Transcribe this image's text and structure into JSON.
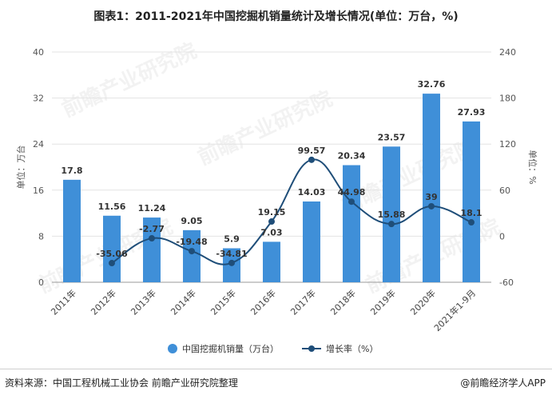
{
  "title": "图表1：2011-2021年中国挖掘机销量统计及增长情况(单位：万台，%)",
  "source": "资料来源：中国工程机械工业协会 前瞻产业研究院整理",
  "credit": "@前瞻经济学人APP",
  "watermark": "前瞻产业研究院",
  "colors": {
    "bar": "#3f8fd8",
    "line": "#1f4e79",
    "grid": "#e3e3e3"
  },
  "chart_data": {
    "type": "bar",
    "categories": [
      "2011年",
      "2012年",
      "2013年",
      "2014年",
      "2015年",
      "2016年",
      "2017年",
      "2018年",
      "2019年",
      "2020年",
      "2021年1-9月"
    ],
    "series": [
      {
        "name": "中国挖掘机销量（万台）",
        "type": "bar",
        "axis": "left",
        "values": [
          17.8,
          11.56,
          11.24,
          9.05,
          5.9,
          7.03,
          14.03,
          20.34,
          23.57,
          32.76,
          27.93
        ]
      },
      {
        "name": "增长率（%）",
        "type": "line",
        "axis": "right",
        "values": [
          null,
          -35.06,
          -2.77,
          -19.48,
          -34.81,
          19.15,
          99.57,
          44.98,
          15.88,
          39,
          18.1
        ]
      }
    ],
    "ylabel_left": "单位：万台",
    "ylabel_right": "单位：%",
    "ylim_left": [
      0,
      40
    ],
    "ylim_right": [
      -60,
      240
    ],
    "yticks_left": [
      0,
      8,
      16,
      24,
      32,
      40
    ],
    "yticks_right": [
      -60,
      0,
      60,
      120,
      180,
      240
    ],
    "legend_position": "bottom",
    "grid": true
  }
}
